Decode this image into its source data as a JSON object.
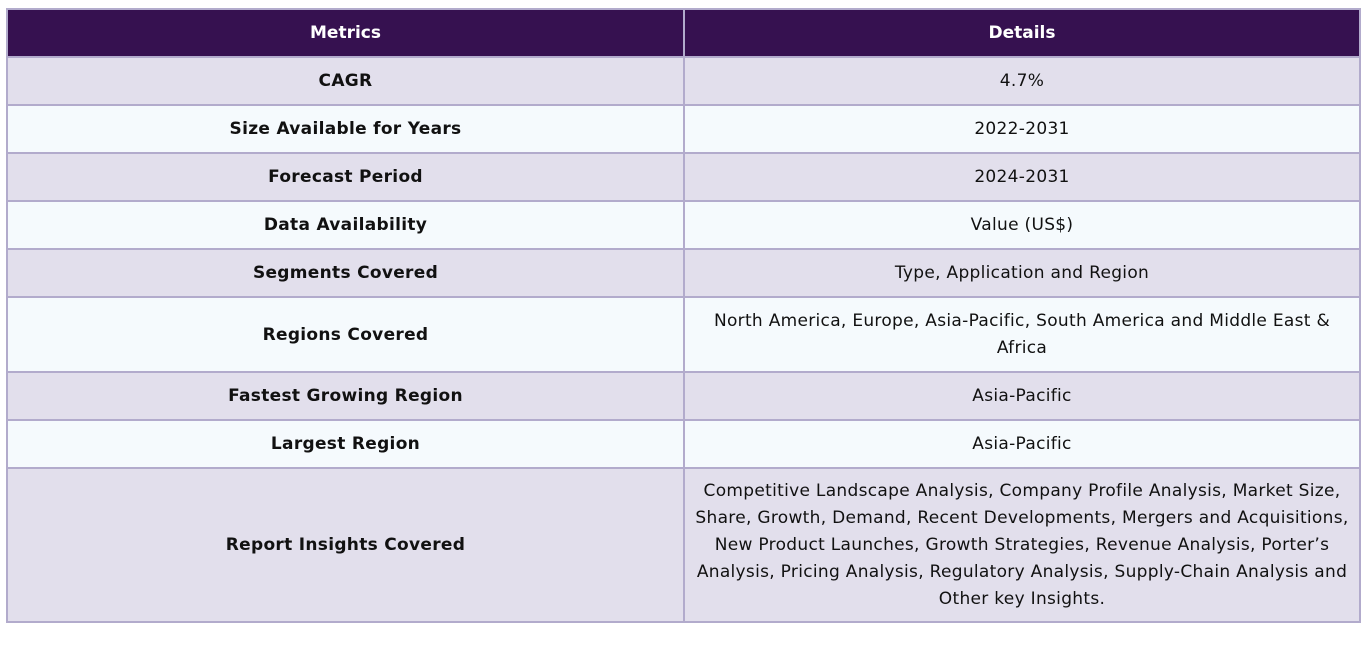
{
  "table": {
    "headers": {
      "metrics": "Metrics",
      "details": "Details"
    },
    "rows": [
      {
        "metric": "CAGR",
        "detail": "4.7%"
      },
      {
        "metric": "Size Available for Years",
        "detail": "2022-2031"
      },
      {
        "metric": "Forecast Period",
        "detail": "2024-2031"
      },
      {
        "metric": "Data Availability",
        "detail": "Value (US$)"
      },
      {
        "metric": "Segments Covered",
        "detail": "Type, Application and Region"
      },
      {
        "metric": "Regions Covered",
        "detail": "North America, Europe, Asia-Pacific, South America and Middle East & Africa"
      },
      {
        "metric": "Fastest Growing Region",
        "detail": "Asia-Pacific"
      },
      {
        "metric": "Largest Region",
        "detail": "Asia-Pacific"
      },
      {
        "metric": "Report Insights Covered",
        "detail": "Competitive Landscape Analysis, Company Profile Analysis, Market Size, Share, Growth, Demand, Recent Developments, Mergers and Acquisitions, New Product Launches, Growth Strategies, Revenue Analysis, Porter’s Analysis, Pricing Analysis, Regulatory Analysis, Supply-Chain Analysis and Other key Insights."
      }
    ]
  },
  "colors": {
    "header_bg": "#361150",
    "row_odd": "#e2dfec",
    "row_even": "#f5fafd",
    "border": "#b2abcc"
  }
}
